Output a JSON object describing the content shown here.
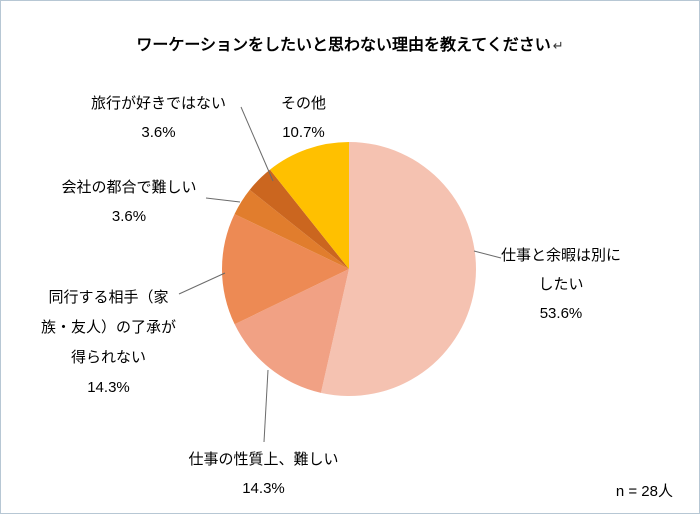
{
  "page": {
    "return_mark": "↵"
  },
  "chart_data": {
    "type": "pie",
    "title": "ワーケーションをしたいと思わない理由を教えてください",
    "n_label": "n = 28人",
    "direction": "clockwise",
    "start_angle_deg": 0,
    "legend_position": "none",
    "slices": [
      {
        "label": "仕事と余暇は別にしたい",
        "value": 53.6,
        "percent_label": "53.6%",
        "color": "#F5C2B1"
      },
      {
        "label": "仕事の性質上、難しい",
        "value": 14.3,
        "percent_label": "14.3%",
        "color": "#F1A184"
      },
      {
        "label": "同行する相手（家族・友人）の了承が得られない",
        "value": 14.3,
        "percent_label": "14.3%",
        "color": "#ED8A54"
      },
      {
        "label": "会社の都合で難しい",
        "value": 3.6,
        "percent_label": "3.6%",
        "color": "#E17D2D"
      },
      {
        "label": "旅行が好きではない",
        "value": 3.6,
        "percent_label": "3.6%",
        "color": "#CB661F"
      },
      {
        "label": "その他",
        "value": 10.7,
        "percent_label": "10.7%",
        "color": "#FFC000"
      }
    ]
  },
  "callouts": {
    "work_leisure": {
      "lines": [
        "仕事と余暇は別に",
        "したい",
        "53.6%"
      ]
    },
    "job_nature": {
      "lines": [
        "仕事の性質上、難しい",
        "14.3%"
      ]
    },
    "companion": {
      "lines": [
        "同行する相手（家",
        "族・友人）の了承が",
        "得られない",
        "14.3%"
      ]
    },
    "company": {
      "lines": [
        "会社の都合で難しい",
        "3.6%"
      ]
    },
    "travel": {
      "lines": [
        "旅行が好きではない",
        "3.6%"
      ]
    },
    "other": {
      "lines": [
        "その他",
        "10.7%"
      ]
    }
  }
}
